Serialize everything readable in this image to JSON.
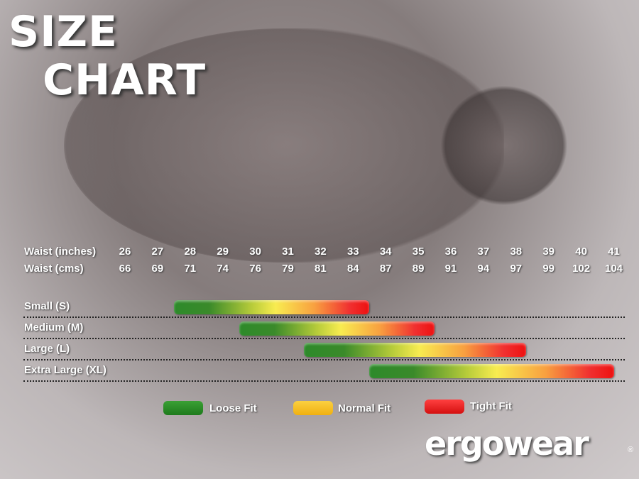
{
  "title": {
    "line1": "SIZE",
    "line2": "CHART"
  },
  "chart_data": {
    "type": "bar",
    "subtype": "range",
    "row_labels": {
      "inches": "Waist (inches)",
      "cms": "Waist (cms)"
    },
    "waist_inches": [
      26,
      27,
      28,
      29,
      30,
      31,
      32,
      33,
      34,
      35,
      36,
      37,
      38,
      39,
      40,
      41
    ],
    "waist_cms": [
      66,
      69,
      71,
      74,
      76,
      79,
      81,
      84,
      87,
      89,
      91,
      94,
      97,
      99,
      102,
      104
    ],
    "sizes": [
      {
        "name": "Small (S)",
        "from_inches": 27.5,
        "to_inches": 33.5
      },
      {
        "name": "Medium (M)",
        "from_inches": 29.5,
        "to_inches": 35.5
      },
      {
        "name": "Large (L)",
        "from_inches": 31.5,
        "to_inches": 38.3
      },
      {
        "name": "Extra Large (XL)",
        "from_inches": 33.5,
        "to_inches": 41
      }
    ],
    "gradient": "green to yellow to red (loose to tight)"
  },
  "legend": [
    {
      "label": "Loose Fit",
      "color": "#2e8b2a"
    },
    {
      "label": "Normal Fit",
      "color": "#f8c020"
    },
    {
      "label": "Tight Fit",
      "color": "#ee1c1c"
    }
  ],
  "logo": {
    "text": "ergowear",
    "registered": "®"
  }
}
